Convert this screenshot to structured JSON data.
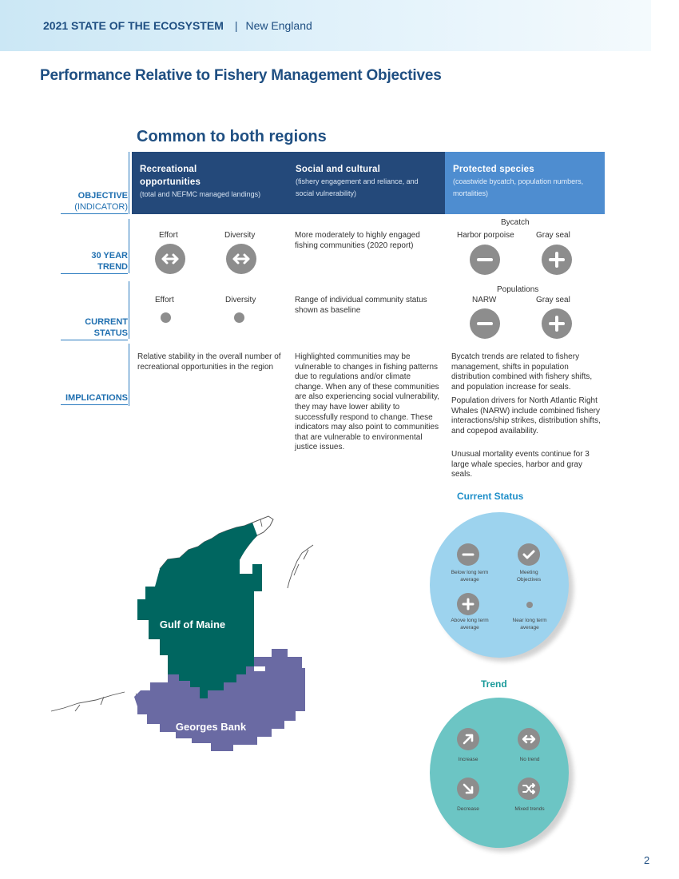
{
  "header": {
    "report_title": "2021 STATE OF THE ECOSYSTEM",
    "separator": "|",
    "region": "New England"
  },
  "page_title": "Performance Relative to Fishery Management Objectives",
  "section_title": "Common to both regions",
  "row_labels": {
    "objective": "OBJECTIVE",
    "indicator": "(INDICATOR)",
    "trend_1": "30 YEAR",
    "trend_2": "TREND",
    "status_1": "CURRENT",
    "status_2": "STATUS",
    "implications": "IMPLICATIONS"
  },
  "objectives": [
    {
      "title": "Recreational opportunities",
      "indicator": "(total and NEFMC managed landings)"
    },
    {
      "title": "Social and cultural",
      "indicator": "(fishery engagement and reliance, and social vulnerability)"
    },
    {
      "title": "Protected species",
      "indicator": "(coastwide bycatch, population numbers, mortalities)"
    }
  ],
  "trend_row": {
    "rec_effort": "Effort",
    "rec_diversity": "Diversity",
    "social_text": "More moderately to highly engaged fishing communities (2020 report)",
    "bycatch_heading": "Bycatch",
    "harbor_porpoise": "Harbor porpoise",
    "gray_seal": "Gray seal"
  },
  "status_row": {
    "rec_effort": "Effort",
    "rec_diversity": "Diversity",
    "social_text": "Range of individual community status shown as baseline",
    "populations_heading": "Populations",
    "narw": "NARW",
    "gray_seal": "Gray seal"
  },
  "implications": {
    "recreational": "Relative stability in the overall number of recreational opportunities in the region",
    "social": "Highlighted communities may be vulnerable to changes in fishing patterns due to regulations and/or climate change. When any of these communities are also experiencing social vulnerability, they may have lower ability to successfully respond to change. These indicators may also point to communities that are vulnerable to environmental justice issues.",
    "protected_1": "Bycatch trends are related to fishery management, shifts in population distribution combined with fishery shifts, and population increase for seals.",
    "protected_2": "Population drivers for North Atlantic Right Whales (NARW) include combined fishery interactions/ship strikes, distribution shifts, and copepod availability.",
    "protected_3": "Unusual mortality events continue for 3 large whale species, harbor and gray seals."
  },
  "map": {
    "gulf_of_maine": "Gulf of Maine",
    "georges_bank": "Georges Bank"
  },
  "current_status_legend": {
    "title": "Current Status",
    "below": "Below long term average",
    "meeting": "Meeting Objectives",
    "above": "Above long term average",
    "near": "Near long term average"
  },
  "trend_legend": {
    "title": "Trend",
    "increase": "Increase",
    "no_trend": "No trend",
    "decrease": "Decrease",
    "mixed": "Mixed trends"
  },
  "page_number": "2",
  "colors": {
    "navy": "#24497a",
    "blue": "#4e8dd0",
    "title_blue": "#1f4f82",
    "gulf_of_maine": "#006660",
    "georges_bank": "#6a6aa3",
    "status_legend_bg": "#9dd3ee",
    "trend_legend_bg": "#6cc5c4",
    "trend_title": "#1a9a9a",
    "icon_gray": "#8d8d8d"
  }
}
